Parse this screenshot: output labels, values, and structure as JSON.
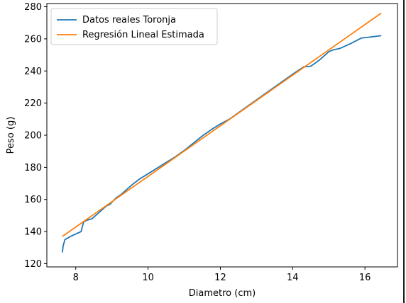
{
  "chart_data": {
    "type": "line",
    "title": "",
    "xlabel": "Diametro (cm)",
    "ylabel": "Peso (g)",
    "xlim": [
      7.2,
      16.9
    ],
    "ylim": [
      118,
      282
    ],
    "xticks": [
      8,
      10,
      12,
      14,
      16
    ],
    "yticks": [
      120,
      140,
      160,
      180,
      200,
      220,
      240,
      260,
      280
    ],
    "grid": false,
    "legend_position": "upper-left",
    "series": [
      {
        "name": "Datos reales Toronja",
        "color": "#1f77b4",
        "x": [
          7.63,
          7.65,
          7.7,
          7.78,
          7.9,
          8.05,
          8.15,
          8.18,
          8.22,
          8.3,
          8.45,
          8.55,
          8.7,
          8.85,
          8.95,
          9.05,
          9.12,
          9.25,
          9.4,
          9.55,
          9.75,
          10.0,
          10.25,
          10.5,
          10.75,
          11.0,
          11.25,
          11.5,
          11.75,
          12.0,
          12.25,
          12.5,
          12.75,
          13.0,
          13.25,
          13.5,
          13.75,
          14.0,
          14.2,
          14.3,
          14.5,
          14.6,
          14.75,
          14.85,
          15.0,
          15.1,
          15.3,
          15.6,
          15.9,
          16.1,
          16.45
        ],
        "y": [
          127,
          131,
          135,
          136,
          137.5,
          139,
          140,
          143,
          146,
          147,
          148,
          150,
          153,
          156,
          157,
          159.5,
          161,
          163,
          166,
          169,
          172.5,
          176,
          179.5,
          183,
          186.5,
          190.5,
          195,
          199.5,
          203.5,
          207,
          210,
          214,
          218,
          222,
          226,
          230,
          234,
          238,
          241,
          242.5,
          243,
          244.5,
          247,
          249,
          252,
          253,
          254,
          257,
          260.5,
          261,
          262
        ]
      },
      {
        "name": "Regresión Lineal Estimada",
        "color": "#ff7f0e",
        "x": [
          7.63,
          16.45
        ],
        "y": [
          137,
          276
        ]
      }
    ]
  }
}
